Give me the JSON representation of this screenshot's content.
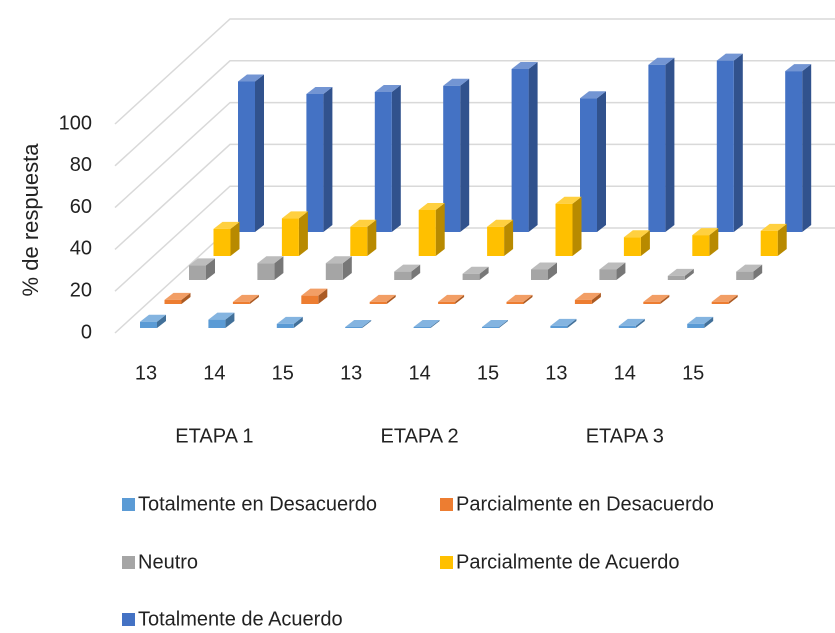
{
  "chart_data": {
    "type": "bar3d",
    "ylabel": "% de respuesta",
    "categories": [
      "13",
      "14",
      "15",
      "13",
      "14",
      "15",
      "13",
      "14",
      "15"
    ],
    "groups": [
      "ETAPA 1",
      "ETAPA 2",
      "ETAPA 3"
    ],
    "ylim": [
      0,
      100
    ],
    "yticks": [
      0,
      20,
      40,
      60,
      80,
      100
    ],
    "grid": true,
    "series": [
      {
        "name": "Totalmente en Desacuerdo",
        "color": "#5b9bd5",
        "values": [
          3,
          4,
          2,
          0.5,
          0.5,
          0.5,
          1,
          1,
          2
        ]
      },
      {
        "name": "Parcialmente en Desacuerdo",
        "color": "#ed7d31",
        "values": [
          2,
          1,
          4,
          1,
          1,
          1,
          2,
          1,
          1
        ]
      },
      {
        "name": "Neutro",
        "color": "#a5a5a5",
        "values": [
          7,
          8,
          8,
          4,
          3,
          5,
          5,
          2,
          4
        ]
      },
      {
        "name": "Parcialmente de Acuerdo",
        "color": "#ffc000",
        "values": [
          13,
          18,
          14,
          22,
          14,
          25,
          9,
          10,
          12
        ]
      },
      {
        "name": "Totalmente de Acuerdo",
        "color": "#4472c4",
        "values": [
          72,
          66,
          67,
          70,
          78,
          64,
          80,
          82,
          77
        ]
      }
    ]
  }
}
